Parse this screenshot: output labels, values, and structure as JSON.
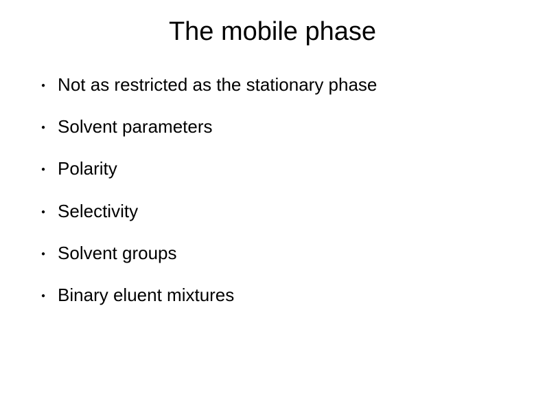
{
  "slide": {
    "title": "The mobile phase",
    "title_fontsize": 38,
    "title_color": "#000000",
    "title_align": "center",
    "background_color": "#ffffff",
    "text_color": "#000000",
    "font_family": "Arial, Helvetica, sans-serif",
    "bullets": [
      {
        "text": "Not as restricted as the stationary phase"
      },
      {
        "text": "Solvent parameters"
      },
      {
        "text": "Polarity"
      },
      {
        "text": "Selectivity"
      },
      {
        "text": "Solvent groups"
      },
      {
        "text": "Binary eluent mixtures"
      }
    ],
    "bullet_fontsize": 26,
    "bullet_marker": "●",
    "bullet_marker_size": 10,
    "bullet_spacing": 30
  }
}
